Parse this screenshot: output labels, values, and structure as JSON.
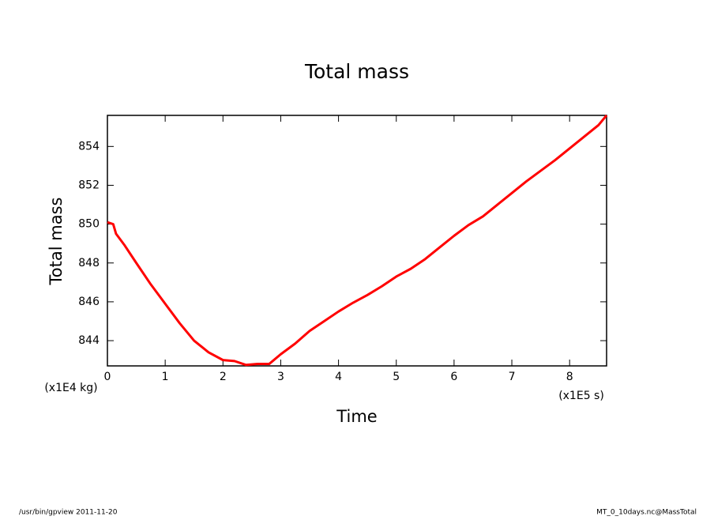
{
  "chart_data": {
    "type": "line",
    "title": "Total mass",
    "x_label": "Time",
    "y_label": "Total mass",
    "x_unit": "(x1E5 s)",
    "y_unit": "(x1E4 kg)",
    "footer_left": "/usr/bin/gpview   2011-11-20",
    "footer_right": "MT_0_10days.nc@MassTotal",
    "xlim": [
      0,
      8.64
    ],
    "ylim": [
      842.7,
      855.6
    ],
    "xticks": [
      0,
      1,
      2,
      3,
      4,
      5,
      6,
      7,
      8
    ],
    "yticks": [
      844,
      846,
      848,
      850,
      852,
      854
    ],
    "x": [
      0,
      0.1,
      0.15,
      0.3,
      0.5,
      0.75,
      1.0,
      1.25,
      1.5,
      1.75,
      2.0,
      2.2,
      2.4,
      2.6,
      2.8,
      3.0,
      3.25,
      3.5,
      3.75,
      4.0,
      4.25,
      4.5,
      4.75,
      5.0,
      5.25,
      5.5,
      5.75,
      6.0,
      6.25,
      6.5,
      6.75,
      7.0,
      7.25,
      7.5,
      7.75,
      8.0,
      8.25,
      8.5,
      8.64
    ],
    "series": [
      {
        "name": "Total mass",
        "color": "#ff0000",
        "values": [
          850.1,
          850.0,
          849.5,
          848.9,
          848.0,
          846.9,
          845.9,
          844.9,
          844.0,
          843.4,
          843.0,
          842.95,
          842.75,
          842.8,
          842.8,
          843.3,
          843.85,
          844.5,
          845.0,
          845.5,
          845.95,
          846.35,
          846.8,
          847.3,
          847.7,
          848.2,
          848.8,
          849.4,
          849.95,
          850.4,
          851.0,
          851.6,
          852.2,
          852.75,
          853.3,
          853.9,
          854.5,
          855.1,
          855.6
        ]
      }
    ]
  }
}
